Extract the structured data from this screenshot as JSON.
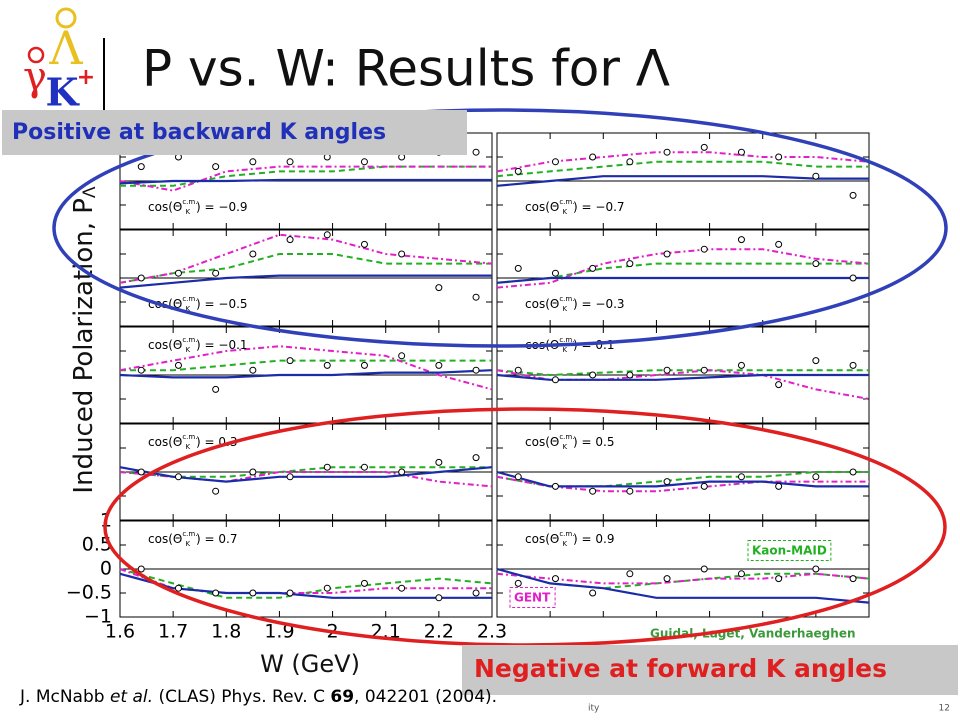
{
  "slide": {
    "title": "P vs. W: Results for Λ",
    "logo": {
      "gamma": "γ",
      "lambda": "Λ",
      "kaon": "K",
      "charge": "+"
    },
    "callout_backward": "Positive at backward K angles",
    "callout_forward": "Negative at forward K angles",
    "citation": {
      "authors": "J. McNabb ",
      "etal": "et al.",
      "journal": " (CLAS) Phys. Rev. C ",
      "volume": "69",
      "rest": ", 042201 (2004)."
    },
    "footer_mid": "ity",
    "page": "12"
  },
  "chart_data": {
    "type": "scatter",
    "ylabel": "Induced Polarization, P",
    "ylabel_sub": "Λ",
    "xlabel": "W (GeV)",
    "xlim": [
      1.6,
      2.3
    ],
    "ylim": [
      -1,
      1
    ],
    "xticks": [
      1.6,
      1.7,
      1.8,
      1.9,
      2,
      2.1,
      2.2,
      2.3
    ],
    "yticks": [
      1,
      0.5,
      0,
      {
        "value": -0.5,
        "label": "−0.5"
      },
      {
        "value": -1,
        "label": "−1"
      }
    ],
    "point_x": [
      1.64,
      1.71,
      1.78,
      1.85,
      1.92,
      1.99,
      2.06,
      2.13,
      2.2,
      2.27
    ],
    "model_x": [
      1.6,
      1.7,
      1.8,
      1.9,
      2.0,
      2.1,
      2.2,
      2.3
    ],
    "models": [
      {
        "name": "Kaon-MAID",
        "color": "#22b022",
        "dash": "6,4"
      },
      {
        "name": "GENT",
        "color": "#e020c8",
        "dash": "6,3,2,3"
      },
      {
        "name": "Guidal, Laget, Vanderhaeghen",
        "color": "#1c2ca8",
        "dash": "none"
      }
    ],
    "panels": [
      {
        "annotation": {
          "pre": "cos(Θ",
          "sup": "c.m.",
          "sub": "K",
          "post": ") = −0.9"
        },
        "values": [
          0.3,
          0.5,
          0.3,
          0.4,
          0.4,
          0.5,
          0.4,
          0.5,
          0.6,
          0.6
        ],
        "curves": [
          [
            -0.1,
            -0.1,
            0.1,
            0.2,
            0.2,
            0.3,
            0.3,
            0.3
          ],
          [
            0,
            -0.2,
            0.2,
            0.3,
            0.3,
            0.3,
            0.3,
            0.3
          ],
          [
            -0.05,
            0,
            0,
            0.02,
            0.02,
            0.02,
            0.02,
            0.02
          ]
        ]
      },
      {
        "annotation": {
          "pre": "cos(Θ",
          "sup": "c.m.",
          "sub": "K",
          "post": ") = −0.7"
        },
        "values": [
          0.2,
          0.4,
          0.5,
          0.4,
          0.6,
          0.7,
          0.6,
          0.5,
          0.1,
          -0.3
        ],
        "curves": [
          [
            0.1,
            0.2,
            0.3,
            0.4,
            0.4,
            0.4,
            0.3,
            0.3
          ],
          [
            0.2,
            0.4,
            0.5,
            0.6,
            0.6,
            0.5,
            0.5,
            0.4
          ],
          [
            -0.1,
            0,
            0.1,
            0.1,
            0.1,
            0.1,
            0.05,
            0.05
          ]
        ]
      },
      {
        "annotation": {
          "pre": "cos(Θ",
          "sup": "c.m.",
          "sub": "K",
          "post": ") = −0.5"
        },
        "values": [
          0.0,
          0.1,
          0.1,
          0.5,
          0.8,
          0.9,
          0.7,
          0.5,
          -0.2,
          -0.4
        ],
        "curves": [
          [
            -0.1,
            0.1,
            0.2,
            0.5,
            0.5,
            0.3,
            0.3,
            0.3
          ],
          [
            -0.1,
            0.1,
            0.5,
            0.9,
            0.8,
            0.5,
            0.4,
            0.3
          ],
          [
            -0.2,
            -0.1,
            0,
            0.05,
            0.05,
            0.05,
            0.05,
            0.05
          ]
        ]
      },
      {
        "annotation": {
          "pre": "cos(Θ",
          "sup": "c.m.",
          "sub": "K",
          "post": ") = −0.3"
        },
        "values": [
          0.2,
          0.1,
          0.2,
          0.3,
          0.5,
          0.6,
          0.8,
          0.7,
          0.3,
          0.0
        ],
        "curves": [
          [
            -0.1,
            0,
            0.2,
            0.3,
            0.3,
            0.3,
            0.3,
            0.3
          ],
          [
            -0.2,
            -0.1,
            0.3,
            0.5,
            0.6,
            0.6,
            0.4,
            0.3
          ],
          [
            -0.1,
            0,
            0,
            0,
            0,
            0,
            0,
            0
          ]
        ]
      },
      {
        "annotation": {
          "pre": "cos(Θ",
          "sup": "c.m.",
          "sub": "K",
          "post": ") = −0.1"
        },
        "values": [
          0.1,
          0.2,
          -0.3,
          0.1,
          0.3,
          0.2,
          0.2,
          0.4,
          0.2,
          0.1
        ],
        "curves": [
          [
            0.1,
            0.1,
            0.2,
            0.3,
            0.3,
            0.3,
            0.3,
            0.3
          ],
          [
            0.1,
            0.3,
            0.5,
            0.6,
            0.5,
            0.4,
            0,
            -0.3
          ],
          [
            0,
            -0.05,
            -0.05,
            0,
            0,
            0.05,
            0.05,
            0.1
          ]
        ]
      },
      {
        "annotation": {
          "pre": "cos(Θ",
          "sup": "c.m.",
          "sub": "K",
          "post": ") = 0.1"
        },
        "values": [
          0.1,
          -0.1,
          0.0,
          0.0,
          0.1,
          0.1,
          0.2,
          -0.2,
          0.3,
          0.2
        ],
        "curves": [
          [
            0.1,
            0,
            0.05,
            0.1,
            0.1,
            0.1,
            0.1,
            0.1
          ],
          [
            0.1,
            -0.1,
            -0.1,
            0,
            0.1,
            0,
            -0.3,
            -0.5
          ],
          [
            0,
            -0.1,
            -0.1,
            -0.1,
            -0.05,
            0,
            0,
            0
          ]
        ]
      },
      {
        "annotation": {
          "pre": "cos(Θ",
          "sup": "c.m.",
          "sub": "K",
          "post": ") = 0.3"
        },
        "values": [
          0.0,
          -0.1,
          -0.4,
          0.0,
          -0.1,
          0.1,
          0.1,
          0.0,
          0.2,
          0.3
        ],
        "curves": [
          [
            0,
            -0.1,
            -0.1,
            0,
            0.1,
            0.1,
            0.1,
            0.1
          ],
          [
            0,
            -0.1,
            -0.2,
            0,
            0,
            0,
            -0.2,
            -0.3
          ],
          [
            0.1,
            -0.1,
            -0.2,
            -0.1,
            -0.1,
            -0.1,
            0,
            0.1
          ]
        ]
      },
      {
        "annotation": {
          "pre": "cos(Θ",
          "sup": "c.m.",
          "sub": "K",
          "post": ") = 0.5"
        },
        "values": [
          -0.1,
          -0.3,
          -0.4,
          -0.4,
          -0.2,
          -0.3,
          -0.1,
          -0.3,
          -0.1,
          0.0
        ],
        "curves": [
          [
            -0.1,
            -0.3,
            -0.3,
            -0.2,
            -0.1,
            -0.1,
            0,
            0
          ],
          [
            -0.1,
            -0.3,
            -0.4,
            -0.4,
            -0.3,
            -0.2,
            -0.2,
            -0.2
          ],
          [
            0,
            -0.3,
            -0.3,
            -0.3,
            -0.2,
            -0.2,
            -0.3,
            -0.3
          ]
        ]
      },
      {
        "annotation": {
          "pre": "cos(Θ",
          "sup": "c.m.",
          "sub": "K",
          "post": ") = 0.7"
        },
        "values": [
          0.0,
          -0.4,
          -0.5,
          -0.5,
          -0.5,
          -0.4,
          -0.3,
          -0.4,
          -0.6,
          -0.5
        ],
        "curves": [
          [
            0,
            -0.3,
            -0.6,
            -0.6,
            -0.4,
            -0.3,
            -0.2,
            -0.3
          ],
          [
            0,
            -0.4,
            -0.5,
            -0.5,
            -0.5,
            -0.4,
            -0.4,
            -0.4
          ],
          [
            -0.1,
            -0.4,
            -0.5,
            -0.5,
            -0.6,
            -0.6,
            -0.6,
            -0.6
          ]
        ]
      },
      {
        "annotation": {
          "pre": "cos(Θ",
          "sup": "c.m.",
          "sub": "K",
          "post": ") = 0.9"
        },
        "values": [
          -0.3,
          -0.2,
          -0.5,
          -0.1,
          -0.2,
          0.0,
          -0.1,
          -0.2,
          0.0,
          -0.2
        ],
        "curves": [
          [
            0,
            -0.3,
            -0.4,
            -0.3,
            -0.2,
            -0.1,
            -0.1,
            -0.2
          ],
          [
            -0.1,
            -0.2,
            -0.3,
            -0.3,
            -0.2,
            -0.2,
            -0.1,
            -0.2
          ],
          [
            0,
            -0.3,
            -0.4,
            -0.6,
            -0.6,
            -0.6,
            -0.6,
            -0.7
          ]
        ]
      }
    ]
  }
}
